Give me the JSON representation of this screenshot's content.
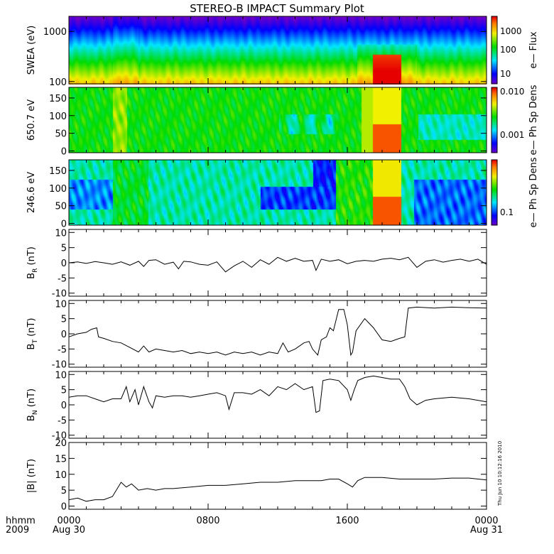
{
  "chart_data": {
    "type": "line",
    "title": "STEREO-B IMPACT Summary Plot",
    "x_axis": {
      "label_lines": [
        "hhmm",
        "2009"
      ],
      "range_hours": [
        0,
        24
      ],
      "ticks": [
        {
          "t": 0,
          "label": "0000",
          "sub": "Aug 30"
        },
        {
          "t": 8,
          "label": "0800",
          "sub": ""
        },
        {
          "t": 16,
          "label": "1600",
          "sub": ""
        },
        {
          "t": 24,
          "label": "0000",
          "sub": "Aug 31"
        }
      ]
    },
    "timestamp": "Thu Jun 10 10:12:16 2010",
    "spectrograms": [
      {
        "name": "swea",
        "ylabel": "SWEA (eV)",
        "yscale": "log",
        "ylim": [
          90,
          2000
        ],
        "yticks": [
          {
            "v": 1000,
            "label": "1000"
          },
          {
            "v": 100,
            "label": "100"
          }
        ],
        "colorbar_label": "e— Flux",
        "colorbar_ticks": [
          "1000",
          "100",
          "10"
        ]
      },
      {
        "name": "pad650",
        "ylabel": "650.7 eV",
        "yscale": "linear",
        "ylim": [
          -5,
          180
        ],
        "yticks": [
          {
            "v": 0,
            "label": "0"
          },
          {
            "v": 50,
            "label": "50"
          },
          {
            "v": 100,
            "label": "100"
          },
          {
            "v": 150,
            "label": "150"
          }
        ],
        "colorbar_label": "e— Ph Sp Dens",
        "colorbar_ticks": [
          "0.010",
          "0.001"
        ]
      },
      {
        "name": "pad246",
        "ylabel": "246.6 eV",
        "yscale": "linear",
        "ylim": [
          -5,
          180
        ],
        "yticks": [
          {
            "v": 0,
            "label": "0"
          },
          {
            "v": 50,
            "label": "50"
          },
          {
            "v": 100,
            "label": "100"
          },
          {
            "v": 150,
            "label": "150"
          }
        ],
        "colorbar_label": "e— Ph Sp Dens",
        "colorbar_ticks": [
          "0.1"
        ]
      }
    ],
    "series": [
      {
        "name": "BR",
        "ylabel": "B_R (nT)",
        "sub": "R",
        "ylim": [
          -11,
          11
        ],
        "yticks": [
          -10,
          -5,
          0,
          5,
          10
        ],
        "t": [
          0,
          0.5,
          1,
          1.5,
          2,
          2.5,
          3,
          3.5,
          4,
          4.3,
          4.6,
          5,
          5.5,
          6,
          6.3,
          6.6,
          7,
          7.5,
          8,
          8.5,
          9,
          9.5,
          10,
          10.5,
          11,
          11.5,
          12,
          12.5,
          13,
          13.5,
          14,
          14.2,
          14.5,
          15,
          15.5,
          16,
          16.5,
          17,
          17.5,
          18,
          18.5,
          19,
          19.5,
          20,
          20.5,
          21,
          21.5,
          22,
          22.5,
          23,
          23.5,
          24
        ],
        "values": [
          0,
          0.3,
          -0.2,
          0.4,
          0,
          -0.5,
          0.3,
          -0.8,
          0.5,
          -1.2,
          0.8,
          1,
          -0.5,
          0.2,
          -2,
          0.5,
          0.3,
          -0.5,
          -0.8,
          0.3,
          -3,
          -1,
          0.5,
          -1.5,
          1,
          -0.5,
          1.8,
          0.5,
          1.5,
          0.5,
          0.8,
          -2.5,
          1.2,
          0.5,
          1,
          -0.3,
          0.5,
          0.8,
          0.5,
          1.2,
          1.5,
          1,
          1.8,
          -1.5,
          0.5,
          1,
          0.2,
          0.8,
          1.2,
          0.5,
          1.2,
          -0.5
        ]
      },
      {
        "name": "BT",
        "ylabel": "B_T (nT)",
        "sub": "T",
        "ylim": [
          -11,
          11
        ],
        "yticks": [
          -10,
          -5,
          0,
          5,
          10
        ],
        "t": [
          0,
          0.5,
          1,
          1.3,
          1.6,
          1.7,
          2,
          2.5,
          3,
          3.5,
          4,
          4.3,
          4.6,
          5,
          5.5,
          6,
          6.5,
          7,
          7.5,
          8,
          8.5,
          9,
          9.5,
          10,
          10.5,
          11,
          11.5,
          12,
          12.3,
          12.6,
          13,
          13.5,
          13.8,
          14,
          14.3,
          14.5,
          14.8,
          15,
          15.2,
          15.5,
          15.8,
          16,
          16.2,
          16.3,
          16.5,
          17,
          17.5,
          18,
          18.5,
          19,
          19.3,
          19.5,
          20,
          21,
          22,
          23,
          24
        ],
        "values": [
          -1,
          0,
          0.5,
          1.5,
          2,
          -1,
          -1.5,
          -2.5,
          -3,
          -4.5,
          -6,
          -4,
          -6,
          -5,
          -5.5,
          -6,
          -5.5,
          -6.5,
          -6,
          -6.5,
          -6,
          -7,
          -6,
          -6.5,
          -6,
          -7,
          -6,
          -6.5,
          -3,
          -6,
          -5,
          -3,
          -2.5,
          -5,
          -7,
          -2,
          -1,
          2,
          1,
          8,
          8,
          3,
          -7,
          -6,
          1,
          5,
          2,
          -2,
          -2.5,
          -1.5,
          -1,
          8.5,
          8.8,
          8.5,
          8.8,
          8.6,
          8.5
        ]
      },
      {
        "name": "BN",
        "ylabel": "B_N (nT)",
        "sub": "N",
        "ylim": [
          -11,
          11
        ],
        "yticks": [
          -10,
          -5,
          0,
          5,
          10
        ],
        "t": [
          0,
          0.5,
          1,
          1.5,
          2,
          2.5,
          3,
          3.3,
          3.5,
          3.8,
          4,
          4.3,
          4.6,
          4.8,
          5,
          5.5,
          6,
          6.5,
          7,
          7.5,
          8,
          8.5,
          9,
          9.2,
          9.5,
          10,
          10.5,
          11,
          11.5,
          12,
          12.5,
          13,
          13.5,
          14,
          14.2,
          14.4,
          14.6,
          15,
          15.5,
          16,
          16.2,
          16.4,
          16.6,
          17,
          17.5,
          18,
          18.5,
          19,
          19.3,
          19.6,
          20,
          20.5,
          21,
          22,
          23,
          24
        ],
        "values": [
          2.5,
          3,
          3,
          2,
          1,
          2,
          2,
          6,
          1,
          5,
          0,
          6,
          1,
          -1,
          3,
          2.5,
          3,
          3,
          2.5,
          3,
          3.5,
          4,
          3,
          -1.5,
          4,
          4,
          3.5,
          5,
          3,
          6,
          5,
          7,
          5,
          6,
          -2.5,
          -2,
          8,
          8.5,
          8,
          5,
          1.5,
          5,
          8,
          9,
          9.5,
          9,
          8.5,
          8.5,
          6,
          2,
          0,
          1.5,
          2,
          2.5,
          2,
          1
        ]
      },
      {
        "name": "Btot",
        "ylabel": "|B| (nT)",
        "sub": "",
        "ylim": [
          -1,
          20
        ],
        "yticks": [
          0,
          5,
          10,
          15,
          20
        ],
        "t": [
          0,
          0.5,
          1,
          1.5,
          2,
          2.5,
          3,
          3.3,
          3.6,
          4,
          4.5,
          5,
          5.5,
          6,
          7,
          8,
          9,
          10,
          11,
          12,
          13,
          14,
          14.5,
          15,
          15.5,
          16,
          16.3,
          16.6,
          17,
          18,
          19,
          20,
          21,
          22,
          23,
          24
        ],
        "values": [
          2,
          2.5,
          1.5,
          2,
          2,
          3,
          7.5,
          6,
          7,
          5,
          5.5,
          5,
          5.5,
          5.5,
          6,
          6.5,
          6.5,
          7,
          7.5,
          7.5,
          8,
          8,
          8,
          8.5,
          8.5,
          7,
          6,
          8,
          9,
          9,
          8.5,
          8.5,
          8.5,
          8.8,
          8.8,
          8.2
        ]
      }
    ]
  }
}
